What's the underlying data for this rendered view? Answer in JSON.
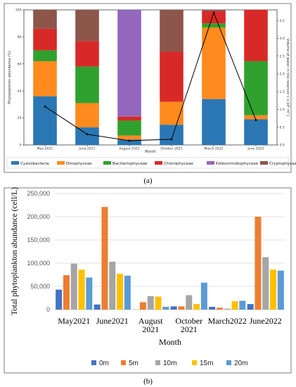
{
  "captions": {
    "a": "(a)",
    "b": "(b)"
  },
  "chart_data": [
    {
      "type": "bar",
      "stacked": true,
      "categories": [
        "May 2021",
        "June 2021",
        "August 2021",
        "October 2021",
        "March 2022",
        "June 2022"
      ],
      "series": [
        {
          "name": "Cyanobacteria",
          "color": "#2a77b4",
          "values": [
            36,
            13,
            4,
            15,
            34,
            19
          ]
        },
        {
          "name": "Dinophyceae",
          "color": "#ff8a1d",
          "values": [
            26,
            18,
            3,
            17,
            53,
            3
          ]
        },
        {
          "name": "Bacillariophyceae",
          "color": "#2fa12f",
          "values": [
            8,
            27,
            11,
            0,
            3,
            40
          ]
        },
        {
          "name": "Chlorophyceae",
          "color": "#d72a28",
          "values": [
            16,
            19,
            3,
            37,
            9,
            38
          ]
        },
        {
          "name": "Klebsormidiophyceae",
          "color": "#9467bd",
          "values": [
            0,
            0,
            79,
            0,
            0,
            0
          ]
        },
        {
          "name": "Cryptophycae",
          "color": "#8c564b",
          "values": [
            14,
            23,
            0,
            31,
            1,
            0
          ]
        }
      ],
      "line": {
        "values": [
          1.08,
          0.3,
          0.12,
          0.16,
          3.72,
          0.7
        ],
        "color": "#000000"
      },
      "xlabel": "Month",
      "ylabel": "Phytoplankton abundance (%)",
      "y2label": "Volume of water in the reservoir ( x 10⁶ m³ )",
      "ylim": [
        0,
        100
      ],
      "y2lim": [
        0,
        3.8
      ],
      "yticks": [
        "0",
        "20",
        "40",
        "60",
        "80",
        "100"
      ],
      "y2ticks": [
        "0.0",
        "0.5",
        "1.0",
        "1.5",
        "2.0",
        "2.5",
        "3.0",
        "3.5"
      ],
      "legend_position": "bottom"
    },
    {
      "type": "bar",
      "categories": [
        "May2021",
        "June2021",
        "August 2021",
        "October 2021",
        "March2022",
        "June2022"
      ],
      "category_lines": [
        [
          "May2021"
        ],
        [
          "June2021"
        ],
        [
          "August",
          "2021"
        ],
        [
          "October",
          "2021"
        ],
        [
          "March2022"
        ],
        [
          "June2022"
        ]
      ],
      "series": [
        {
          "name": "0m",
          "color": "#4472c4",
          "values": [
            43000,
            11000,
            0,
            7000,
            6000,
            12000
          ]
        },
        {
          "name": "5m",
          "color": "#ed7d31",
          "values": [
            74000,
            221000,
            16000,
            7000,
            4000,
            200000
          ]
        },
        {
          "name": "10m",
          "color": "#a5a5a5",
          "values": [
            99000,
            103000,
            29000,
            31000,
            2000,
            113000
          ]
        },
        {
          "name": "15m",
          "color": "#ffc000",
          "values": [
            86000,
            77000,
            28000,
            12000,
            18000,
            86000
          ]
        },
        {
          "name": "20m",
          "color": "#5b9bd5",
          "values": [
            69000,
            73000,
            6000,
            58000,
            19000,
            84000
          ]
        }
      ],
      "xlabel": "Month",
      "ylabel": "Total phytoplankton abundance (cell/L)",
      "ylim": [
        0,
        250000
      ],
      "yticks": [
        "0",
        "50,000",
        "100,000",
        "150,000",
        "200,000",
        "250,000"
      ],
      "grid": true,
      "legend_position": "bottom"
    }
  ]
}
